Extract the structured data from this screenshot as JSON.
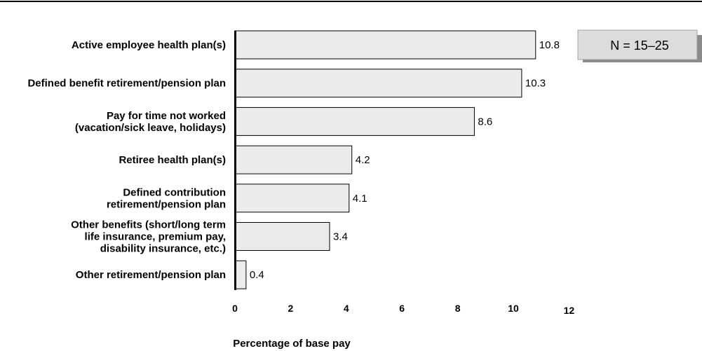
{
  "chart_data": {
    "type": "bar",
    "orientation": "horizontal",
    "categories": [
      [
        "Active employee health plan(s)"
      ],
      [
        "Defined benefit retirement/pension plan"
      ],
      [
        "Pay for time not worked",
        "(vacation/sick leave, holidays)"
      ],
      [
        "Retiree health plan(s)"
      ],
      [
        "Defined contribution",
        "retirement/pension plan"
      ],
      [
        "Other benefits (short/long term",
        "life insurance, premium pay,",
        "disability insurance, etc.)"
      ],
      [
        "Other retirement/pension plan"
      ]
    ],
    "values": [
      10.8,
      10.3,
      8.6,
      4.2,
      4.1,
      3.4,
      0.4
    ],
    "value_labels": [
      "10.8",
      "10.3",
      "8.6",
      "4.2",
      "4.1",
      "3.4",
      "0.4"
    ],
    "xticks": [
      "0",
      "2",
      "4",
      "6",
      "8",
      "10",
      "12"
    ],
    "xlim": [
      0,
      12
    ],
    "title": "",
    "xlabel": "Percentage of base pay",
    "ylabel": "",
    "annotation": "N = 15–25",
    "grid": false,
    "colors": {
      "bar_fill": "#ebebeb",
      "bar_stroke": "#000000",
      "annotation_fill": "#dcdcdc",
      "annotation_shadow": "#8a8a8a"
    }
  }
}
